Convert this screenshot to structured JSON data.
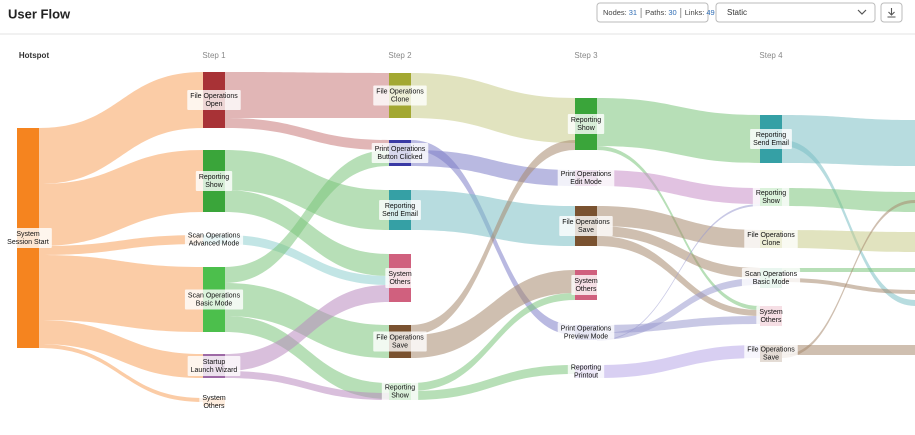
{
  "header": {
    "title": "User Flow",
    "stats": [
      {
        "label": "Nodes:",
        "value": 31
      },
      {
        "label": "Paths:",
        "value": 30
      },
      {
        "label": "Links:",
        "value": 49
      }
    ],
    "mode": "Static"
  },
  "columns": [
    {
      "title": "Hotspot",
      "nodes": [
        {
          "category": "System",
          "name": "Session Start"
        }
      ]
    },
    {
      "title": "Step 1",
      "nodes": [
        {
          "category": "File Operations",
          "name": "Open"
        },
        {
          "category": "Reporting",
          "name": "Show"
        },
        {
          "category": "Scan Operations",
          "name": "Advanced Mode"
        },
        {
          "category": "Scan Operations",
          "name": "Basic Mode"
        },
        {
          "category": "Startup",
          "name": "Launch Wizard"
        },
        {
          "category": "System",
          "name": "Others"
        }
      ]
    },
    {
      "title": "Step 2",
      "nodes": [
        {
          "category": "File Operations",
          "name": "Clone"
        },
        {
          "category": "Print Operations",
          "name": "Button Clicked"
        },
        {
          "category": "Reporting",
          "name": "Send Email"
        },
        {
          "category": "System",
          "name": "Others"
        },
        {
          "category": "File Operations",
          "name": "Save"
        },
        {
          "category": "Reporting",
          "name": "Show"
        }
      ]
    },
    {
      "title": "Step 3",
      "nodes": [
        {
          "category": "Reporting",
          "name": "Show"
        },
        {
          "category": "Print Operations",
          "name": "Edit Mode"
        },
        {
          "category": "File Operations",
          "name": "Save"
        },
        {
          "category": "System",
          "name": "Others"
        },
        {
          "category": "Print Operations",
          "name": "Preview Mode"
        },
        {
          "category": "Reporting",
          "name": "Printout"
        }
      ]
    },
    {
      "title": "Step 4",
      "nodes": [
        {
          "category": "Reporting",
          "name": "Send Email"
        },
        {
          "category": "Reporting",
          "name": "Show"
        },
        {
          "category": "File Operations",
          "name": "Clone"
        },
        {
          "category": "Scan Operations",
          "name": "Basic Mode"
        },
        {
          "category": "System",
          "name": "Others"
        },
        {
          "category": "File Operations",
          "name": "Save"
        }
      ]
    }
  ]
}
